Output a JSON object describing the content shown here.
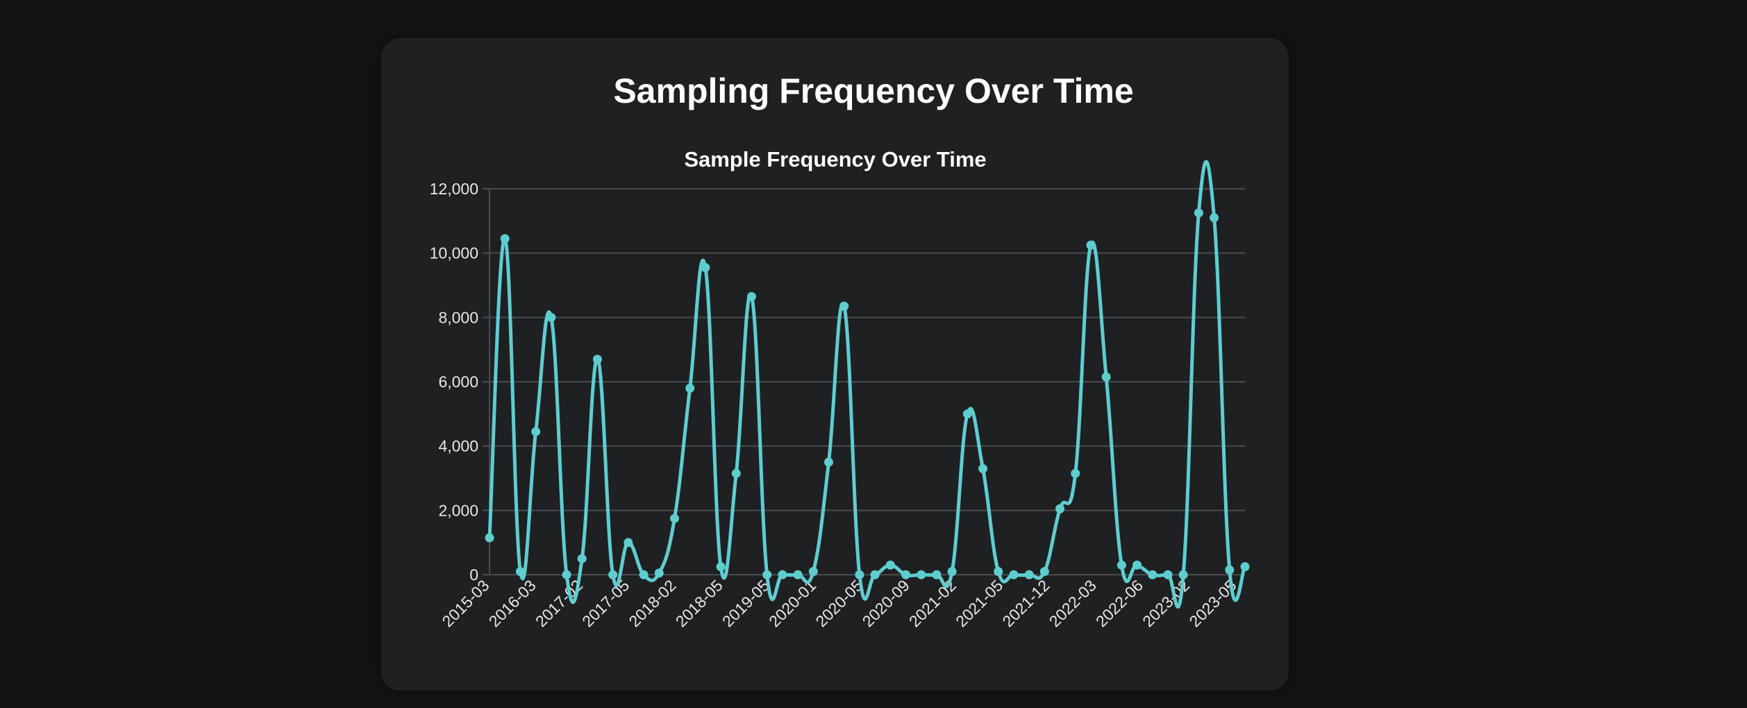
{
  "page": {
    "title": "Sampling Frequency Over Time"
  },
  "chart_data": {
    "type": "line",
    "title": "Sample Frequency Over Time",
    "xlabel": "",
    "ylabel": "",
    "ylim": [
      0,
      12000
    ],
    "yticks": [
      0,
      2000,
      4000,
      6000,
      8000,
      10000,
      12000
    ],
    "ytick_labels": [
      "0",
      "2,000",
      "4,000",
      "6,000",
      "8,000",
      "10,000",
      "12,000"
    ],
    "xtick_labels": [
      "2015-03",
      "2016-03",
      "2017-02",
      "2017-05",
      "2018-02",
      "2018-05",
      "2019-05",
      "2020-01",
      "2020-05",
      "2020-09",
      "2021-02",
      "2021-05",
      "2021-12",
      "2022-03",
      "2022-06",
      "2023-02",
      "2023-05"
    ],
    "grid": true,
    "legend": "none",
    "line_color": "#5ecdcf",
    "values": [
      1150,
      10450,
      100,
      4450,
      8000,
      0,
      500,
      6700,
      0,
      1000,
      0,
      50,
      1750,
      5800,
      9550,
      250,
      3150,
      8650,
      0,
      0,
      0,
      100,
      3500,
      8350,
      0,
      0,
      300,
      0,
      0,
      0,
      100,
      5000,
      3300,
      100,
      0,
      0,
      100,
      2050,
      3150,
      10250,
      6150,
      300,
      300,
      0,
      0,
      0,
      11250,
      11100,
      150,
      250
    ]
  }
}
